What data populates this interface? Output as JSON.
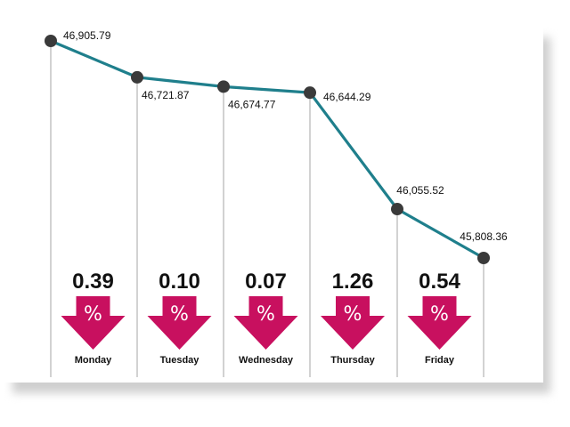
{
  "chart_data": {
    "type": "line",
    "categories": [
      "Monday",
      "Tuesday",
      "Wednesday",
      "Thursday",
      "Friday"
    ],
    "x_start_label": "",
    "points": [
      46905.79,
      46721.87,
      46674.77,
      46644.29,
      46055.52,
      45808.36
    ],
    "point_labels": [
      "46,905.79",
      "46,721.87",
      "46,674.77",
      "46,644.29",
      "46,055.52",
      "45,808.36"
    ],
    "daily_change": [
      {
        "day": "Monday",
        "percent": "0.39",
        "direction": "down"
      },
      {
        "day": "Tuesday",
        "percent": "0.10",
        "direction": "down"
      },
      {
        "day": "Wednesday",
        "percent": "0.07",
        "direction": "down"
      },
      {
        "day": "Thursday",
        "percent": "1.26",
        "direction": "down"
      },
      {
        "day": "Friday",
        "percent": "0.54",
        "direction": "down"
      }
    ],
    "percent_symbol": "%",
    "grid": false,
    "legend": "none",
    "colors": {
      "line": "#1f7f8c",
      "marker": "#3a3a3a",
      "arrow": "#c8105f",
      "drop_line": "#b5b5b5"
    }
  }
}
